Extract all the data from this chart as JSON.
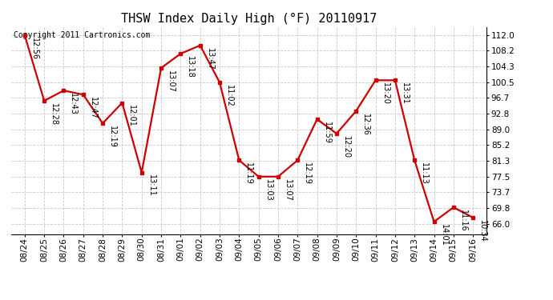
{
  "title": "THSW Index Daily High (°F) 20110917",
  "copyright": "Copyright 2011 Cartronics.com",
  "background_color": "#ffffff",
  "plot_bg_color": "#ffffff",
  "grid_color": "#c8c8c8",
  "line_color": "#cc0000",
  "marker_color": "#cc0000",
  "dates": [
    "08/24",
    "08/25",
    "08/26",
    "08/27",
    "08/28",
    "08/29",
    "08/30",
    "08/31",
    "09/01",
    "09/02",
    "09/03",
    "09/04",
    "09/05",
    "09/06",
    "09/07",
    "09/08",
    "09/09",
    "09/10",
    "09/11",
    "09/12",
    "09/13",
    "09/14",
    "09/15",
    "09/16"
  ],
  "values": [
    112.0,
    96.0,
    98.5,
    97.5,
    90.5,
    95.5,
    78.5,
    104.0,
    107.5,
    109.5,
    100.5,
    81.5,
    77.5,
    77.5,
    81.5,
    91.5,
    88.0,
    93.5,
    101.0,
    101.0,
    81.5,
    66.5,
    70.0,
    67.5
  ],
  "annotations": [
    "12:56",
    "12:28",
    "12:43",
    "12:47",
    "12:19",
    "12:01",
    "13:11",
    "13:07",
    "13:18",
    "13:47",
    "11:02",
    "11:19",
    "13:03",
    "13:07",
    "12:19",
    "11:59",
    "12:20",
    "12:36",
    "13:20",
    "13:31",
    "11:13",
    "14:01",
    "11:16",
    "10:34"
  ],
  "yticks": [
    66.0,
    69.8,
    73.7,
    77.5,
    81.3,
    85.2,
    89.0,
    92.8,
    96.7,
    100.5,
    104.3,
    108.2,
    112.0
  ],
  "ylim": [
    63.5,
    114.0
  ],
  "title_fontsize": 11,
  "tick_fontsize": 7.5,
  "annotation_fontsize": 7,
  "copyright_fontsize": 7,
  "marker_size": 3.5,
  "line_width": 1.6
}
